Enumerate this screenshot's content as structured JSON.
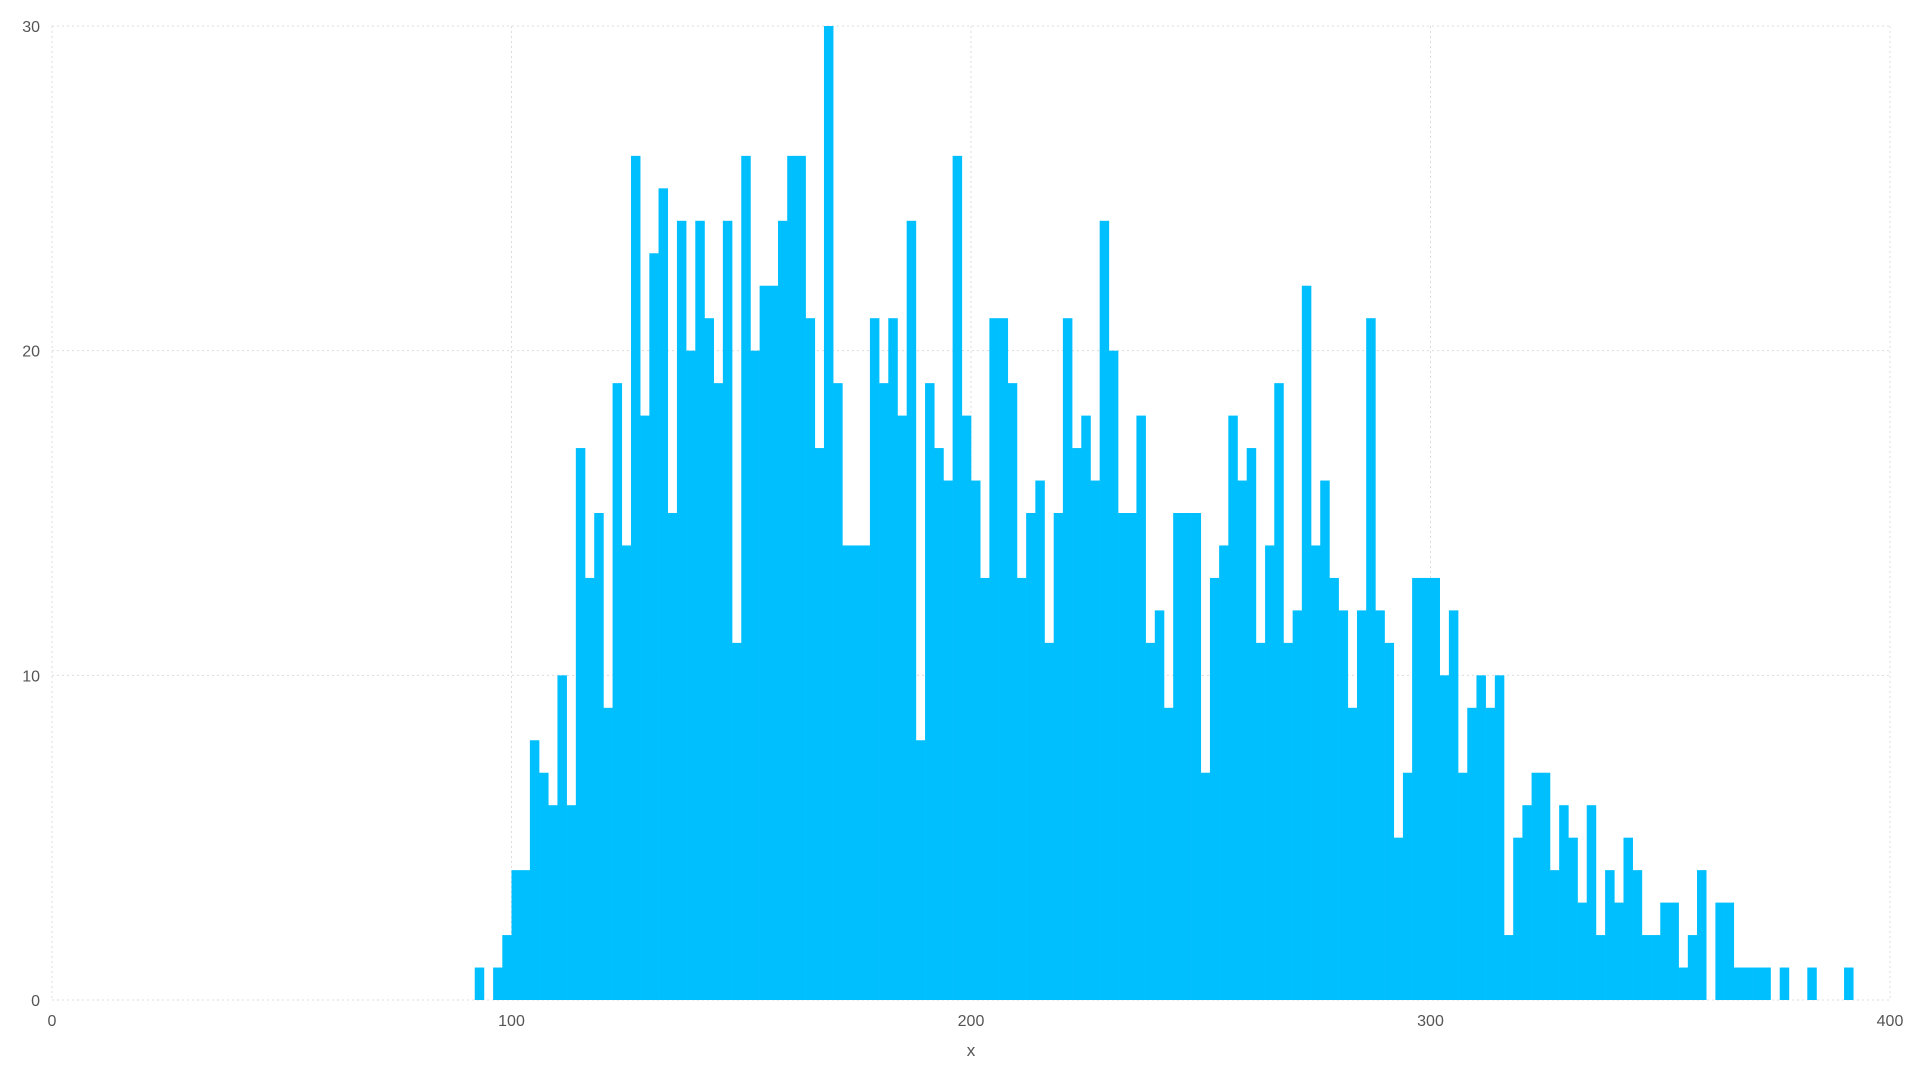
{
  "chart_data": {
    "type": "bar",
    "title": "",
    "xlabel": "x",
    "ylabel": "",
    "xlim": [
      0,
      400
    ],
    "ylim": [
      0,
      30
    ],
    "xticks": [
      0,
      100,
      200,
      300,
      400
    ],
    "yticks": [
      0,
      10,
      20,
      30
    ],
    "grid": true,
    "legend": "none",
    "bin_width": 2,
    "x_start": 92,
    "values": [
      1,
      0,
      1,
      2,
      4,
      4,
      8,
      7,
      6,
      10,
      6,
      17,
      13,
      15,
      9,
      19,
      14,
      26,
      18,
      23,
      25,
      15,
      24,
      20,
      24,
      21,
      19,
      24,
      11,
      26,
      20,
      22,
      22,
      24,
      26,
      26,
      21,
      17,
      30,
      19,
      14,
      14,
      14,
      21,
      19,
      21,
      18,
      24,
      8,
      19,
      17,
      16,
      26,
      18,
      16,
      13,
      21,
      21,
      19,
      13,
      15,
      16,
      11,
      15,
      21,
      17,
      18,
      16,
      24,
      20,
      15,
      15,
      18,
      11,
      12,
      9,
      15,
      15,
      15,
      7,
      13,
      14,
      18,
      16,
      17,
      11,
      14,
      19,
      11,
      12,
      22,
      14,
      16,
      13,
      12,
      9,
      12,
      21,
      12,
      11,
      5,
      7,
      13,
      13,
      13,
      10,
      12,
      7,
      9,
      10,
      9,
      10,
      2,
      5,
      6,
      7,
      7,
      4,
      6,
      5,
      3,
      6,
      2,
      4,
      3,
      5,
      4,
      2,
      2,
      3,
      3,
      1,
      2,
      4,
      0,
      3,
      3,
      1,
      1,
      1,
      1,
      0,
      1,
      0,
      0,
      1,
      0,
      0,
      0,
      1
    ],
    "bar_color": "#00bfff"
  }
}
